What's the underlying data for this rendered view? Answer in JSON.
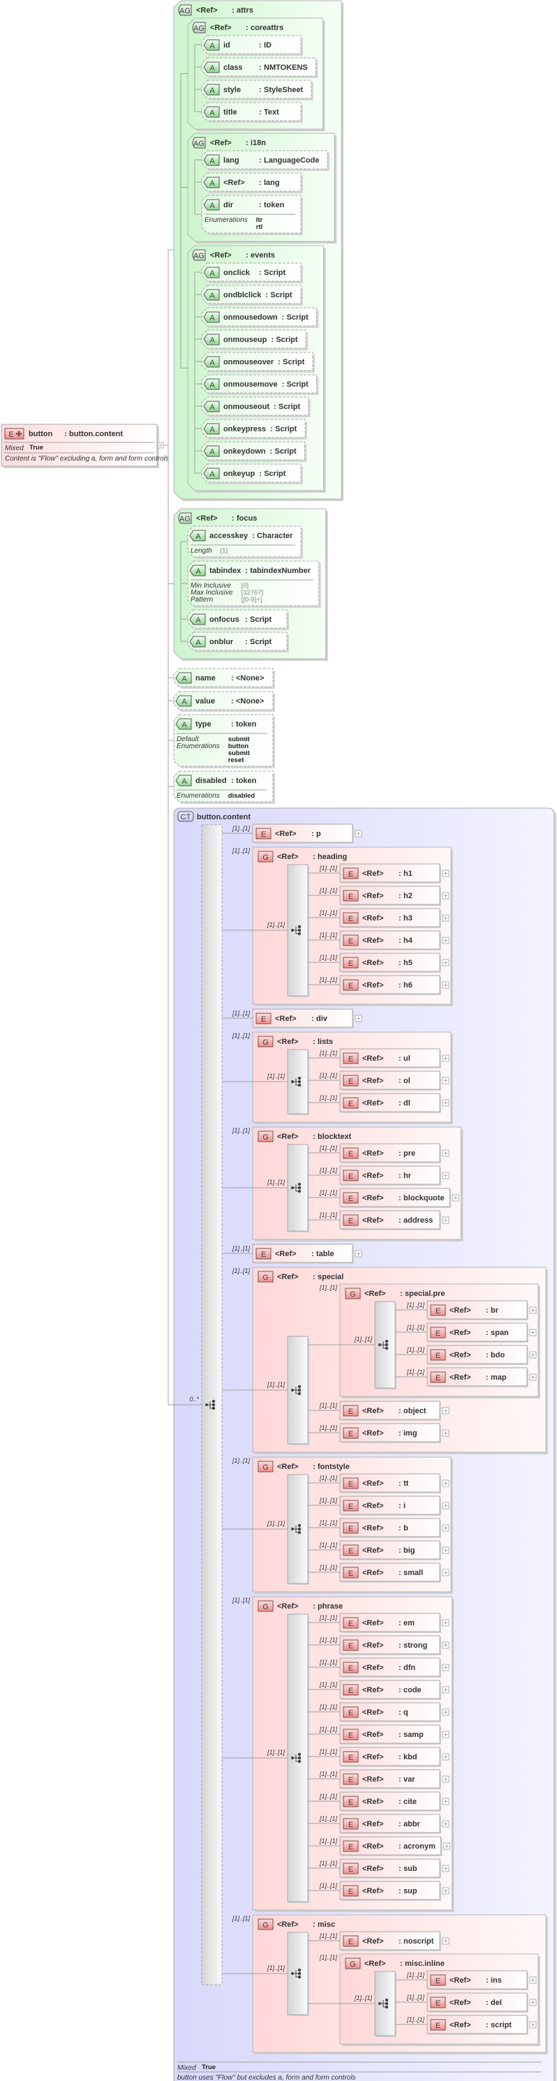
{
  "separator": ":",
  "badges": {
    "element": "E",
    "group": "G",
    "attribute": "A",
    "attribute_group": "AG",
    "complex_type": "CT"
  },
  "root_element": {
    "name": "button",
    "type": "button.content",
    "property_label": "Mixed",
    "property_value": "True",
    "description": "Content is \"Flow\" excluding a, form and form controls"
  },
  "attributes": [
    {
      "kind": "AG",
      "ref": "<Ref>",
      "name": "attrs",
      "children": [
        {
          "kind": "AG",
          "ref": "<Ref>",
          "name": "coreattrs",
          "children": [
            {
              "kind": "A",
              "name": "id",
              "type": "ID"
            },
            {
              "kind": "A",
              "name": "class",
              "type": "NMTOKENS"
            },
            {
              "kind": "A",
              "name": "style",
              "type": "StyleSheet"
            },
            {
              "kind": "A",
              "name": "title",
              "type": "Text"
            }
          ]
        },
        {
          "kind": "AG",
          "ref": "<Ref>",
          "name": "i18n",
          "children": [
            {
              "kind": "A",
              "name": "lang",
              "type": "LanguageCode"
            },
            {
              "kind": "A",
              "name": "<Ref>",
              "type": "lang"
            },
            {
              "kind": "A",
              "name": "dir",
              "type": "token",
              "facets": [
                {
                  "label": "Enumerations",
                  "values": [
                    "ltr",
                    "rtl"
                  ]
                }
              ]
            }
          ]
        },
        {
          "kind": "AG",
          "ref": "<Ref>",
          "name": "events",
          "children": [
            {
              "kind": "A",
              "name": "onclick",
              "type": "Script"
            },
            {
              "kind": "A",
              "name": "ondblclick",
              "type": "Script"
            },
            {
              "kind": "A",
              "name": "onmousedown",
              "type": "Script"
            },
            {
              "kind": "A",
              "name": "onmouseup",
              "type": "Script"
            },
            {
              "kind": "A",
              "name": "onmouseover",
              "type": "Script"
            },
            {
              "kind": "A",
              "name": "onmousemove",
              "type": "Script"
            },
            {
              "kind": "A",
              "name": "onmouseout",
              "type": "Script"
            },
            {
              "kind": "A",
              "name": "onkeypress",
              "type": "Script"
            },
            {
              "kind": "A",
              "name": "onkeydown",
              "type": "Script"
            },
            {
              "kind": "A",
              "name": "onkeyup",
              "type": "Script"
            }
          ]
        }
      ]
    },
    {
      "kind": "AG",
      "ref": "<Ref>",
      "name": "focus",
      "children": [
        {
          "kind": "A",
          "name": "accesskey",
          "type": "Character",
          "facets": [
            {
              "label": "Length",
              "values": [
                "[1]"
              ]
            }
          ]
        },
        {
          "kind": "A",
          "name": "tabindex",
          "type": "tabindexNumber",
          "facets": [
            {
              "label": "Min Inclusive",
              "values": [
                "[0]"
              ]
            },
            {
              "label": "Max Inclusive",
              "values": [
                "[32767]"
              ]
            },
            {
              "label": "Pattern",
              "values": [
                "[[0-9]+]"
              ]
            }
          ]
        },
        {
          "kind": "A",
          "name": "onfocus",
          "type": "Script"
        },
        {
          "kind": "A",
          "name": "onblur",
          "type": "Script"
        }
      ]
    },
    {
      "kind": "A",
      "name": "name",
      "type": "<None>"
    },
    {
      "kind": "A",
      "name": "value",
      "type": "<None>"
    },
    {
      "kind": "A",
      "name": "type",
      "type": "token",
      "facets": [
        {
          "label": "Default",
          "values": [
            "submit"
          ]
        },
        {
          "label": "Enumerations",
          "values": [
            "button",
            "submit",
            "reset"
          ]
        }
      ]
    },
    {
      "kind": "A",
      "name": "disabled",
      "type": "token",
      "facets": [
        {
          "label": "Enumerations",
          "values": [
            "disabled"
          ]
        }
      ]
    }
  ],
  "content_type": {
    "name": "button.content",
    "compositor_occurs": "0..*",
    "property_label": "Mixed",
    "property_value": "True",
    "description": "button uses \"Flow\" but excludes a, form and form controls",
    "children": [
      {
        "kind": "E",
        "ref": "<Ref>",
        "name": "p",
        "occurs": "[1]..[1]"
      },
      {
        "kind": "G",
        "ref": "<Ref>",
        "name": "heading",
        "occurs": "[1]..[1]",
        "compositor_occurs": "[1]..[1]",
        "children": [
          {
            "kind": "E",
            "ref": "<Ref>",
            "name": "h1",
            "occurs": "[1]..[1]"
          },
          {
            "kind": "E",
            "ref": "<Ref>",
            "name": "h2",
            "occurs": "[1]..[1]"
          },
          {
            "kind": "E",
            "ref": "<Ref>",
            "name": "h3",
            "occurs": "[1]..[1]"
          },
          {
            "kind": "E",
            "ref": "<Ref>",
            "name": "h4",
            "occurs": "[1]..[1]"
          },
          {
            "kind": "E",
            "ref": "<Ref>",
            "name": "h5",
            "occurs": "[1]..[1]"
          },
          {
            "kind": "E",
            "ref": "<Ref>",
            "name": "h6",
            "occurs": "[1]..[1]"
          }
        ]
      },
      {
        "kind": "E",
        "ref": "<Ref>",
        "name": "div",
        "occurs": "[1]..[1]"
      },
      {
        "kind": "G",
        "ref": "<Ref>",
        "name": "lists",
        "occurs": "[1]..[1]",
        "compositor_occurs": "[1]..[1]",
        "children": [
          {
            "kind": "E",
            "ref": "<Ref>",
            "name": "ul",
            "occurs": "[1]..[1]"
          },
          {
            "kind": "E",
            "ref": "<Ref>",
            "name": "ol",
            "occurs": "[1]..[1]"
          },
          {
            "kind": "E",
            "ref": "<Ref>",
            "name": "dl",
            "occurs": "[1]..[1]"
          }
        ]
      },
      {
        "kind": "G",
        "ref": "<Ref>",
        "name": "blocktext",
        "occurs": "[1]..[1]",
        "compositor_occurs": "[1]..[1]",
        "children": [
          {
            "kind": "E",
            "ref": "<Ref>",
            "name": "pre",
            "occurs": "[1]..[1]"
          },
          {
            "kind": "E",
            "ref": "<Ref>",
            "name": "hr",
            "occurs": "[1]..[1]"
          },
          {
            "kind": "E",
            "ref": "<Ref>",
            "name": "blockquote",
            "occurs": "[1]..[1]"
          },
          {
            "kind": "E",
            "ref": "<Ref>",
            "name": "address",
            "occurs": "[1]..[1]"
          }
        ]
      },
      {
        "kind": "E",
        "ref": "<Ref>",
        "name": "table",
        "occurs": "[1]..[1]"
      },
      {
        "kind": "G",
        "ref": "<Ref>",
        "name": "special",
        "occurs": "[1]..[1]",
        "compositor_occurs": "[1]..[1]",
        "children": [
          {
            "kind": "G",
            "ref": "<Ref>",
            "name": "special.pre",
            "occurs": "[1]..[1]",
            "compositor_occurs": "[1]..[1]",
            "children": [
              {
                "kind": "E",
                "ref": "<Ref>",
                "name": "br",
                "occurs": "[1]..[1]"
              },
              {
                "kind": "E",
                "ref": "<Ref>",
                "name": "span",
                "occurs": "[1]..[1]"
              },
              {
                "kind": "E",
                "ref": "<Ref>",
                "name": "bdo",
                "occurs": "[1]..[1]"
              },
              {
                "kind": "E",
                "ref": "<Ref>",
                "name": "map",
                "occurs": "[1]..[1]"
              }
            ]
          },
          {
            "kind": "E",
            "ref": "<Ref>",
            "name": "object",
            "occurs": "[1]..[1]"
          },
          {
            "kind": "E",
            "ref": "<Ref>",
            "name": "img",
            "occurs": "[1]..[1]"
          }
        ]
      },
      {
        "kind": "G",
        "ref": "<Ref>",
        "name": "fontstyle",
        "occurs": "[1]..[1]",
        "compositor_occurs": "[1]..[1]",
        "children": [
          {
            "kind": "E",
            "ref": "<Ref>",
            "name": "tt",
            "occurs": "[1]..[1]"
          },
          {
            "kind": "E",
            "ref": "<Ref>",
            "name": "i",
            "occurs": "[1]..[1]"
          },
          {
            "kind": "E",
            "ref": "<Ref>",
            "name": "b",
            "occurs": "[1]..[1]"
          },
          {
            "kind": "E",
            "ref": "<Ref>",
            "name": "big",
            "occurs": "[1]..[1]"
          },
          {
            "kind": "E",
            "ref": "<Ref>",
            "name": "small",
            "occurs": "[1]..[1]"
          }
        ]
      },
      {
        "kind": "G",
        "ref": "<Ref>",
        "name": "phrase",
        "occurs": "[1]..[1]",
        "compositor_occurs": "[1]..[1]",
        "children": [
          {
            "kind": "E",
            "ref": "<Ref>",
            "name": "em",
            "occurs": "[1]..[1]"
          },
          {
            "kind": "E",
            "ref": "<Ref>",
            "name": "strong",
            "occurs": "[1]..[1]"
          },
          {
            "kind": "E",
            "ref": "<Ref>",
            "name": "dfn",
            "occurs": "[1]..[1]"
          },
          {
            "kind": "E",
            "ref": "<Ref>",
            "name": "code",
            "occurs": "[1]..[1]"
          },
          {
            "kind": "E",
            "ref": "<Ref>",
            "name": "q",
            "occurs": "[1]..[1]"
          },
          {
            "kind": "E",
            "ref": "<Ref>",
            "name": "samp",
            "occurs": "[1]..[1]"
          },
          {
            "kind": "E",
            "ref": "<Ref>",
            "name": "kbd",
            "occurs": "[1]..[1]"
          },
          {
            "kind": "E",
            "ref": "<Ref>",
            "name": "var",
            "occurs": "[1]..[1]"
          },
          {
            "kind": "E",
            "ref": "<Ref>",
            "name": "cite",
            "occurs": "[1]..[1]"
          },
          {
            "kind": "E",
            "ref": "<Ref>",
            "name": "abbr",
            "occurs": "[1]..[1]"
          },
          {
            "kind": "E",
            "ref": "<Ref>",
            "name": "acronym",
            "occurs": "[1]..[1]"
          },
          {
            "kind": "E",
            "ref": "<Ref>",
            "name": "sub",
            "occurs": "[1]..[1]"
          },
          {
            "kind": "E",
            "ref": "<Ref>",
            "name": "sup",
            "occurs": "[1]..[1]"
          }
        ]
      },
      {
        "kind": "G",
        "ref": "<Ref>",
        "name": "misc",
        "occurs": "[1]..[1]",
        "compositor_occurs": "[1]..[1]",
        "children": [
          {
            "kind": "E",
            "ref": "<Ref>",
            "name": "noscript",
            "occurs": "[1]..[1]"
          },
          {
            "kind": "G",
            "ref": "<Ref>",
            "name": "misc.inline",
            "occurs": "[1]..[1]",
            "compositor_occurs": "[1]..[1]",
            "children": [
              {
                "kind": "E",
                "ref": "<Ref>",
                "name": "ins",
                "occurs": "[1]..[1]"
              },
              {
                "kind": "E",
                "ref": "<Ref>",
                "name": "del",
                "occurs": "[1]..[1]"
              },
              {
                "kind": "E",
                "ref": "<Ref>",
                "name": "script",
                "occurs": "[1]..[1]"
              }
            ]
          }
        ]
      }
    ]
  }
}
